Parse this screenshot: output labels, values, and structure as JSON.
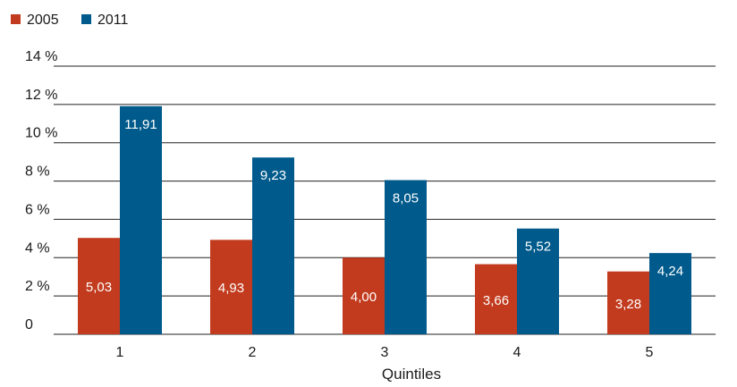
{
  "chart_data": {
    "type": "bar",
    "categories": [
      "1",
      "2",
      "3",
      "4",
      "5"
    ],
    "series": [
      {
        "name": "2005",
        "color": "#c23b1e",
        "values": [
          5.03,
          4.93,
          4.0,
          3.66,
          3.28
        ],
        "labels": [
          "5,03",
          "4,93",
          "4,00",
          "3,66",
          "3,28"
        ]
      },
      {
        "name": "2011",
        "color": "#005a8b",
        "values": [
          11.91,
          9.23,
          8.05,
          5.52,
          4.24
        ],
        "labels": [
          "11,91",
          "9,23",
          "8,05",
          "5,52",
          "4,24"
        ]
      }
    ],
    "yticks": [
      {
        "value": 0,
        "label": "0"
      },
      {
        "value": 2,
        "label": "2 %"
      },
      {
        "value": 4,
        "label": "4 %"
      },
      {
        "value": 6,
        "label": "6 %"
      },
      {
        "value": 8,
        "label": "8 %"
      },
      {
        "value": 10,
        "label": "10 %"
      },
      {
        "value": 12,
        "label": "12 %"
      },
      {
        "value": 14,
        "label": "14 %"
      }
    ],
    "ylim": [
      0,
      14
    ],
    "xlabel": "Quintiles",
    "ylabel": "",
    "title": "",
    "grid": true,
    "legend_position": "top-left"
  }
}
